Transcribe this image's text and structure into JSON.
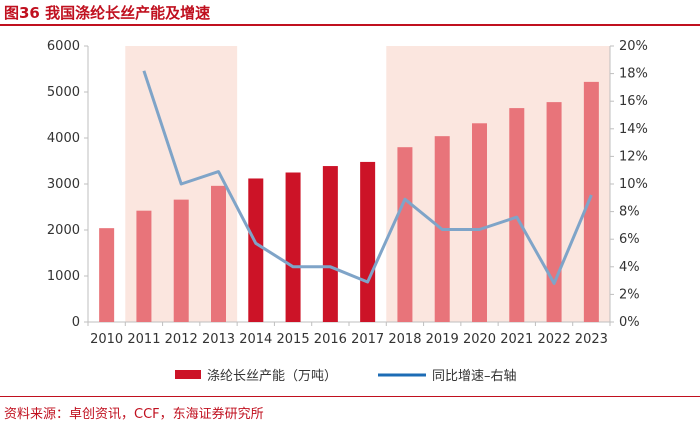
{
  "figure_label": "图36 我国涤纶长丝产能及增速",
  "source_note": "资料来源：卓创资讯，CCF，东海证券研究所",
  "colors": {
    "bar_dark": "#cc1327",
    "bar_light": "#e8747a",
    "line": "#7fa4c8",
    "shade": "#fbe6df",
    "accent": "#c0101f"
  },
  "chart_data": {
    "type": "bar",
    "title": "我国涤纶长丝产能及增速",
    "categories": [
      "2010",
      "2011",
      "2012",
      "2013",
      "2014",
      "2015",
      "2016",
      "2017",
      "2018",
      "2019",
      "2020",
      "2021",
      "2022",
      "2023"
    ],
    "series": [
      {
        "name": "涤纶长丝产能（万吨）",
        "type": "bar",
        "axis": "left",
        "values": [
          2040,
          2420,
          2660,
          2960,
          3120,
          3250,
          3390,
          3480,
          3800,
          4040,
          4320,
          4650,
          4780,
          5220
        ]
      },
      {
        "name": "同比增速–右轴",
        "type": "line",
        "axis": "right",
        "values": [
          null,
          18.2,
          10.0,
          10.9,
          5.7,
          4.0,
          4.0,
          2.9,
          8.9,
          6.7,
          6.7,
          7.6,
          2.8,
          9.2
        ]
      }
    ],
    "bar_highlight": [
      "light",
      "light",
      "light",
      "light",
      "dark",
      "dark",
      "dark",
      "dark",
      "light",
      "light",
      "light",
      "light",
      "light",
      "light"
    ],
    "shaded_ranges": [
      [
        "2011",
        "2013"
      ],
      [
        "2018",
        "2023"
      ]
    ],
    "y_left": {
      "min": 0,
      "max": 6000,
      "ticks": [
        "0",
        "1000",
        "2000",
        "3000",
        "4000",
        "5000",
        "6000"
      ]
    },
    "y_right": {
      "min": 0,
      "max": 20,
      "ticks": [
        "0%",
        "2%",
        "4%",
        "6%",
        "8%",
        "10%",
        "12%",
        "14%",
        "16%",
        "18%",
        "20%"
      ]
    },
    "legend": {
      "placement": "bottom",
      "bar_label": "涤纶长丝产能（万吨）",
      "line_label": "同比增速–右轴"
    }
  }
}
